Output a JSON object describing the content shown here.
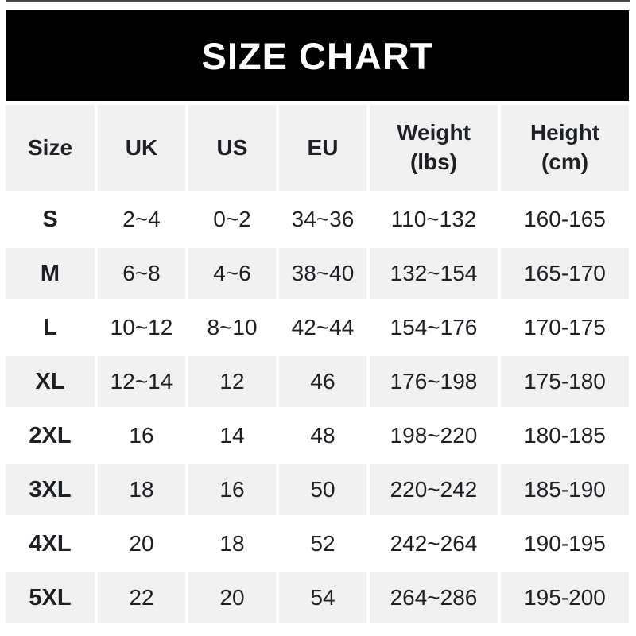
{
  "banner": {
    "title": "SIZE CHART"
  },
  "colors": {
    "banner_bg": "#000000",
    "banner_text": "#ffffff",
    "row_alt_bg": "#f1f1f1",
    "row_bg": "#ffffff",
    "text": "#1d2025",
    "top_rule": "#454545"
  },
  "chart_data": {
    "type": "table",
    "title": "SIZE CHART",
    "legend_position": "none",
    "grid": "off",
    "columns": [
      {
        "label": "Size",
        "sub": ""
      },
      {
        "label": "UK",
        "sub": ""
      },
      {
        "label": "US",
        "sub": ""
      },
      {
        "label": "EU",
        "sub": ""
      },
      {
        "label": "Weight",
        "sub": "(lbs)"
      },
      {
        "label": "Height",
        "sub": "(cm)"
      }
    ],
    "rows": [
      [
        "S",
        "2~4",
        "0~2",
        "34~36",
        "110~132",
        "160-165"
      ],
      [
        "M",
        "6~8",
        "4~6",
        "38~40",
        "132~154",
        "165-170"
      ],
      [
        "L",
        "10~12",
        "8~10",
        "42~44",
        "154~176",
        "170-175"
      ],
      [
        "XL",
        "12~14",
        "12",
        "46",
        "176~198",
        "175-180"
      ],
      [
        "2XL",
        "16",
        "14",
        "48",
        "198~220",
        "180-185"
      ],
      [
        "3XL",
        "18",
        "16",
        "50",
        "220~242",
        "185-190"
      ],
      [
        "4XL",
        "20",
        "18",
        "52",
        "242~264",
        "190-195"
      ],
      [
        "5XL",
        "22",
        "20",
        "54",
        "264~286",
        "195-200"
      ]
    ]
  }
}
